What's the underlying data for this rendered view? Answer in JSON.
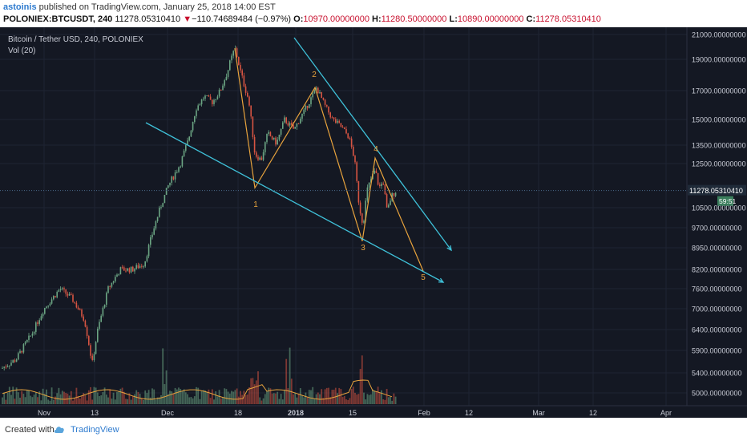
{
  "header": {
    "user": "astoinis",
    "published": "published on TradingView.com, January 25, 2018 14:00 EST",
    "symbol": "POLONIEX:BTCUSDT, 240",
    "price": "11278.05310410",
    "change_arrow": "▼",
    "change": "−110.74689484 (−0.97%)",
    "o_label": "O:",
    "o_val": "10970.00000000",
    "h_label": "H:",
    "h_val": "11280.50000000",
    "l_label": "L:",
    "l_val": "10890.00000000",
    "c_label": "C:",
    "c_val": "11278.05310410"
  },
  "pane": {
    "title": "Bitcoin / Tether USD, 240, POLONIEX",
    "volume_label": "Vol (20)"
  },
  "price_axis": {
    "labels": [
      "21000.00000000",
      "19000.00000000",
      "17000.00000000",
      "15000.00000000",
      "13500.00000000",
      "12500.00000000",
      "10500.00000000",
      "9700.00000000",
      "8950.00000000",
      "8200.00000000",
      "7600.00000000",
      "7000.00000000",
      "6400.00000000",
      "5900.00000000",
      "5400.00000000",
      "5000.00000000"
    ],
    "current_price": "11278.05310410",
    "countdown": "59:51"
  },
  "time_axis": {
    "labels": [
      "Nov",
      "13",
      "Dec",
      "18",
      "2018",
      "15",
      "Feb",
      "12",
      "Mar",
      "12",
      "Apr"
    ]
  },
  "wave_labels": [
    "1",
    "2",
    "3",
    "4",
    "5"
  ],
  "colors": {
    "background": "#141823",
    "up": "#6ba583",
    "down": "#d75442",
    "wave": "#e8a33d",
    "trendline": "#3fc1d9"
  },
  "footer": {
    "created": "Created with",
    "brand": "TradingView",
    "logo_icon": "tradingview-cloud-icon"
  }
}
